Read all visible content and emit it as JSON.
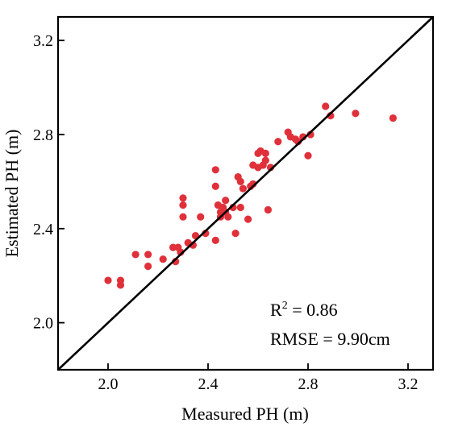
{
  "chart_data": {
    "type": "scatter",
    "xlabel": "Measured PH (m)",
    "ylabel": "Estimated PH (m)",
    "xlim": [
      1.8,
      3.3
    ],
    "ylim": [
      1.8,
      3.3
    ],
    "xticks": [
      2.0,
      2.4,
      2.8,
      3.2
    ],
    "yticks": [
      2.0,
      2.4,
      2.8,
      3.2
    ],
    "xtick_labels": [
      "2.0",
      "2.4",
      "2.8",
      "3.2"
    ],
    "ytick_labels": [
      "2.0",
      "2.4",
      "2.8",
      "3.2"
    ],
    "grid": false,
    "reference_line": "1:1",
    "point_color": "#e0303a",
    "line_color": "#000000",
    "annotation": {
      "r2_prefix": "R",
      "r2_sup": "2",
      "r2_value": " = 0.86",
      "rmse": "RMSE = 9.90cm"
    },
    "series": [
      {
        "points": [
          [
            2.0,
            2.18
          ],
          [
            2.05,
            2.16
          ],
          [
            2.05,
            2.18
          ],
          [
            2.11,
            2.29
          ],
          [
            2.16,
            2.24
          ],
          [
            2.16,
            2.29
          ],
          [
            2.22,
            2.27
          ],
          [
            2.26,
            2.32
          ],
          [
            2.27,
            2.26
          ],
          [
            2.28,
            2.32
          ],
          [
            2.29,
            2.3
          ],
          [
            2.3,
            2.45
          ],
          [
            2.3,
            2.5
          ],
          [
            2.3,
            2.53
          ],
          [
            2.32,
            2.34
          ],
          [
            2.34,
            2.33
          ],
          [
            2.35,
            2.37
          ],
          [
            2.37,
            2.45
          ],
          [
            2.39,
            2.38
          ],
          [
            2.43,
            2.65
          ],
          [
            2.43,
            2.58
          ],
          [
            2.43,
            2.35
          ],
          [
            2.44,
            2.5
          ],
          [
            2.45,
            2.45
          ],
          [
            2.45,
            2.47
          ],
          [
            2.46,
            2.49
          ],
          [
            2.47,
            2.47
          ],
          [
            2.47,
            2.52
          ],
          [
            2.48,
            2.45
          ],
          [
            2.5,
            2.49
          ],
          [
            2.51,
            2.38
          ],
          [
            2.52,
            2.62
          ],
          [
            2.53,
            2.6
          ],
          [
            2.53,
            2.49
          ],
          [
            2.54,
            2.57
          ],
          [
            2.56,
            2.44
          ],
          [
            2.57,
            2.58
          ],
          [
            2.58,
            2.59
          ],
          [
            2.58,
            2.67
          ],
          [
            2.6,
            2.66
          ],
          [
            2.6,
            2.72
          ],
          [
            2.61,
            2.73
          ],
          [
            2.62,
            2.67
          ],
          [
            2.63,
            2.69
          ],
          [
            2.63,
            2.72
          ],
          [
            2.64,
            2.48
          ],
          [
            2.65,
            2.66
          ],
          [
            2.68,
            2.77
          ],
          [
            2.72,
            2.81
          ],
          [
            2.73,
            2.79
          ],
          [
            2.75,
            2.78
          ],
          [
            2.76,
            2.77
          ],
          [
            2.78,
            2.79
          ],
          [
            2.8,
            2.71
          ],
          [
            2.81,
            2.8
          ],
          [
            2.87,
            2.92
          ],
          [
            2.89,
            2.88
          ],
          [
            2.99,
            2.89
          ],
          [
            3.14,
            2.87
          ]
        ]
      }
    ]
  }
}
